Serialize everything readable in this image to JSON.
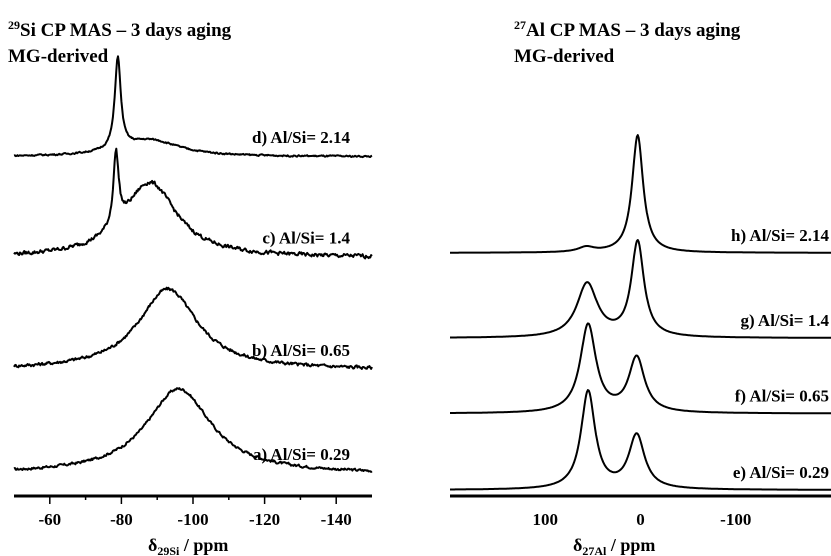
{
  "chart_data": [
    {
      "type": "line",
      "title_line1": "Si CP MAS – 3 days aging",
      "title_sup": "29",
      "title_line2": "MG-derived",
      "xlabel_main": "δ",
      "xlabel_sub": "29Si",
      "xlabel_unit": " / ppm",
      "xlim": [
        -50,
        -150
      ],
      "xticks": [
        -60,
        -80,
        -100,
        -120,
        -140
      ],
      "xtick_labels": [
        "-60",
        "-80",
        "-100",
        "-120",
        "-140"
      ],
      "series": [
        {
          "name": "a) Al/Si= 0.29",
          "label": "a) Al/Si= 0.29",
          "baseline": 0.0,
          "peaks": [
            {
              "center": -96,
              "width": 11,
              "height": 0.82
            }
          ],
          "noise": 0.02
        },
        {
          "name": "b) Al/Si= 0.65",
          "label": "b) Al/Si= 0.65",
          "baseline": 1.0,
          "peaks": [
            {
              "center": -93,
              "width": 10,
              "height": 0.78
            }
          ],
          "noise": 0.025
        },
        {
          "name": "c) Al/Si= 1.4",
          "label": "c) Al/Si= 1.4",
          "baseline": 2.08,
          "peaks": [
            {
              "center": -78.5,
              "width": 0.9,
              "height": 0.7
            },
            {
              "center": -88,
              "width": 9,
              "height": 0.72
            }
          ],
          "noise": 0.03
        },
        {
          "name": "d) Al/Si= 2.14",
          "label": "d) Al/Si= 2.14",
          "baseline": 3.05,
          "peaks": [
            {
              "center": -79,
              "width": 1.0,
              "height": 0.88
            },
            {
              "center": -88,
              "width": 10,
              "height": 0.16
            }
          ],
          "noise": 0.012
        }
      ]
    },
    {
      "type": "line",
      "title_line1": "Al CP MAS – 3 days aging",
      "title_sup": "27",
      "title_line2": "MG-derived",
      "xlabel_main": "δ",
      "xlabel_sub": "27Al",
      "xlabel_unit": " / ppm",
      "xlim": [
        200,
        -200
      ],
      "xticks": [
        100,
        0,
        -100
      ],
      "xtick_labels": [
        "100",
        "0",
        "-100"
      ],
      "series": [
        {
          "name": "e) Al/Si= 0.29",
          "label": "e) Al/Si= 0.29",
          "baseline": 0.0,
          "peaks": [
            {
              "center": 55,
              "width": 9,
              "height": 1.0
            },
            {
              "center": 4,
              "width": 10,
              "height": 0.55
            }
          ],
          "noise": 0.0
        },
        {
          "name": "f) Al/Si= 0.65",
          "label": "f) Al/Si= 0.65",
          "baseline": 0.78,
          "peaks": [
            {
              "center": 55,
              "width": 10,
              "height": 0.9
            },
            {
              "center": 4,
              "width": 10,
              "height": 0.56
            }
          ],
          "noise": 0.0
        },
        {
          "name": "g) Al/Si= 1.4",
          "label": "g) Al/Si= 1.4",
          "baseline": 1.55,
          "peaks": [
            {
              "center": 56,
              "width": 13,
              "height": 0.55
            },
            {
              "center": 3,
              "width": 8,
              "height": 0.97
            }
          ],
          "noise": 0.0
        },
        {
          "name": "h) Al/Si= 2.14",
          "label": "h) Al/Si= 2.14",
          "baseline": 2.42,
          "peaks": [
            {
              "center": 57,
              "width": 10,
              "height": 0.05
            },
            {
              "center": 3,
              "width": 7,
              "height": 1.2
            }
          ],
          "noise": 0.0
        }
      ]
    }
  ]
}
